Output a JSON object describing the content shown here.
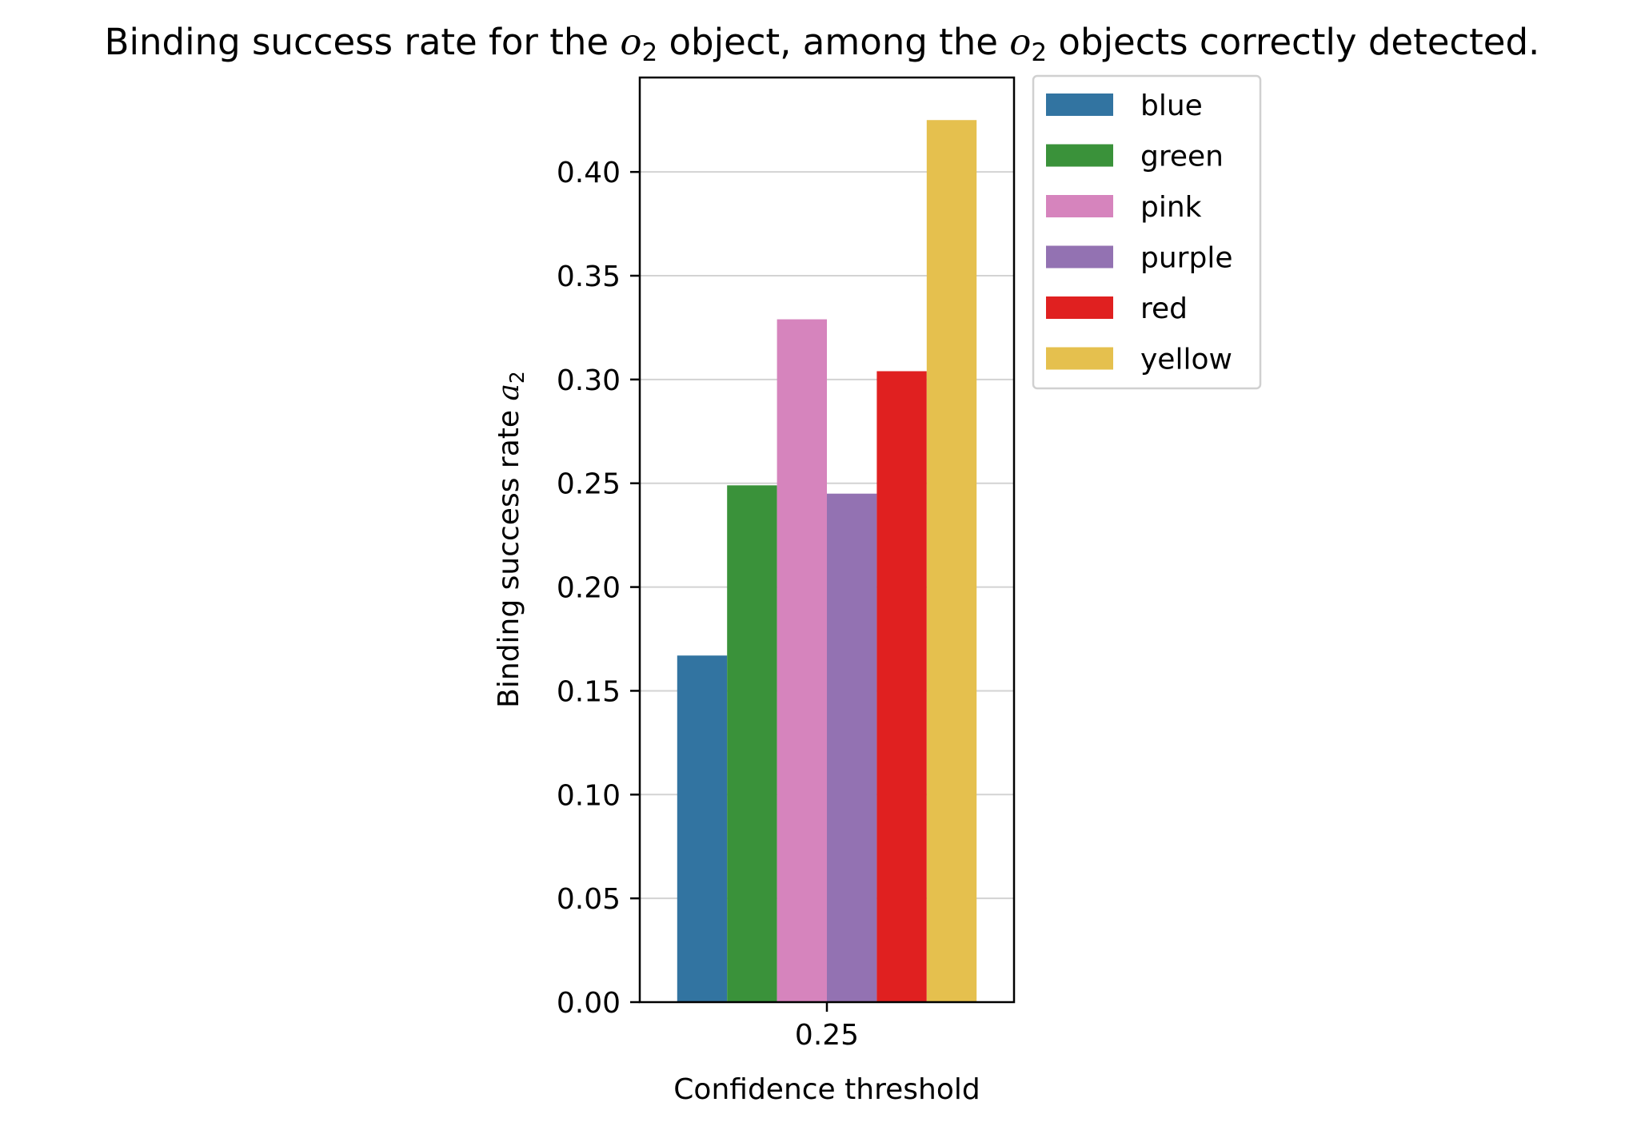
{
  "chart_data": {
    "type": "bar",
    "title": {
      "prefix": "Binding success rate for the ",
      "sym1_base": "o",
      "sym1_sub": "2",
      "middle": " object, among the ",
      "sym2_base": "o",
      "sym2_sub": "2",
      "suffix": " objects correctly detected."
    },
    "xlabel": "Confidence threshold",
    "ylabel": {
      "text": "Binding success rate ",
      "sym_base": "a",
      "sym_sub": "2"
    },
    "categories": [
      "0.25"
    ],
    "series": [
      {
        "name": "blue",
        "color": "#3274a1",
        "values": [
          0.167
        ]
      },
      {
        "name": "green",
        "color": "#3a923a",
        "values": [
          0.249
        ]
      },
      {
        "name": "pink",
        "color": "#d684bd",
        "values": [
          0.329
        ]
      },
      {
        "name": "purple",
        "color": "#9372b2",
        "values": [
          0.245
        ]
      },
      {
        "name": "red",
        "color": "#e02020",
        "values": [
          0.304
        ]
      },
      {
        "name": "yellow",
        "color": "#e5c04e",
        "values": [
          0.425
        ]
      }
    ],
    "ylim": [
      0,
      0.4455
    ],
    "yticks": [
      "0.00",
      "0.05",
      "0.10",
      "0.15",
      "0.20",
      "0.25",
      "0.30",
      "0.35",
      "0.40"
    ],
    "grid": "y",
    "legend": "outside-upper-right"
  }
}
